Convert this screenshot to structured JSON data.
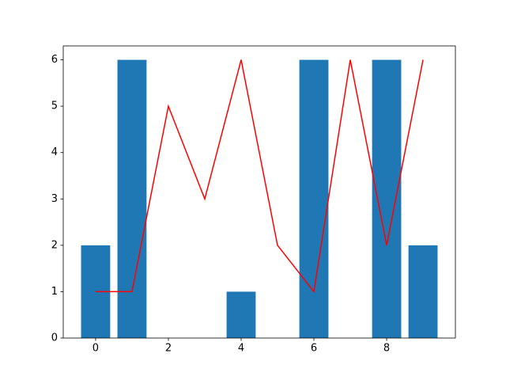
{
  "chart_data": {
    "type": "bar",
    "x": [
      0,
      1,
      2,
      3,
      4,
      5,
      6,
      7,
      8,
      9
    ],
    "series": [
      {
        "type": "bar",
        "color": "#1f77b4",
        "values": [
          2,
          6,
          0,
          0,
          1,
          0,
          6,
          0,
          6,
          2
        ]
      },
      {
        "type": "line",
        "color": "#ff0000",
        "values": [
          1,
          1,
          5,
          3,
          6,
          2,
          1,
          6,
          2,
          6
        ]
      }
    ],
    "xlim": [
      -0.89,
      9.89
    ],
    "ylim": [
      0,
      6.3
    ],
    "xticks": [
      0,
      2,
      4,
      6,
      8
    ],
    "yticks": [
      0,
      1,
      2,
      3,
      4,
      5,
      6
    ],
    "bar_width": 0.8,
    "grid": false
  }
}
